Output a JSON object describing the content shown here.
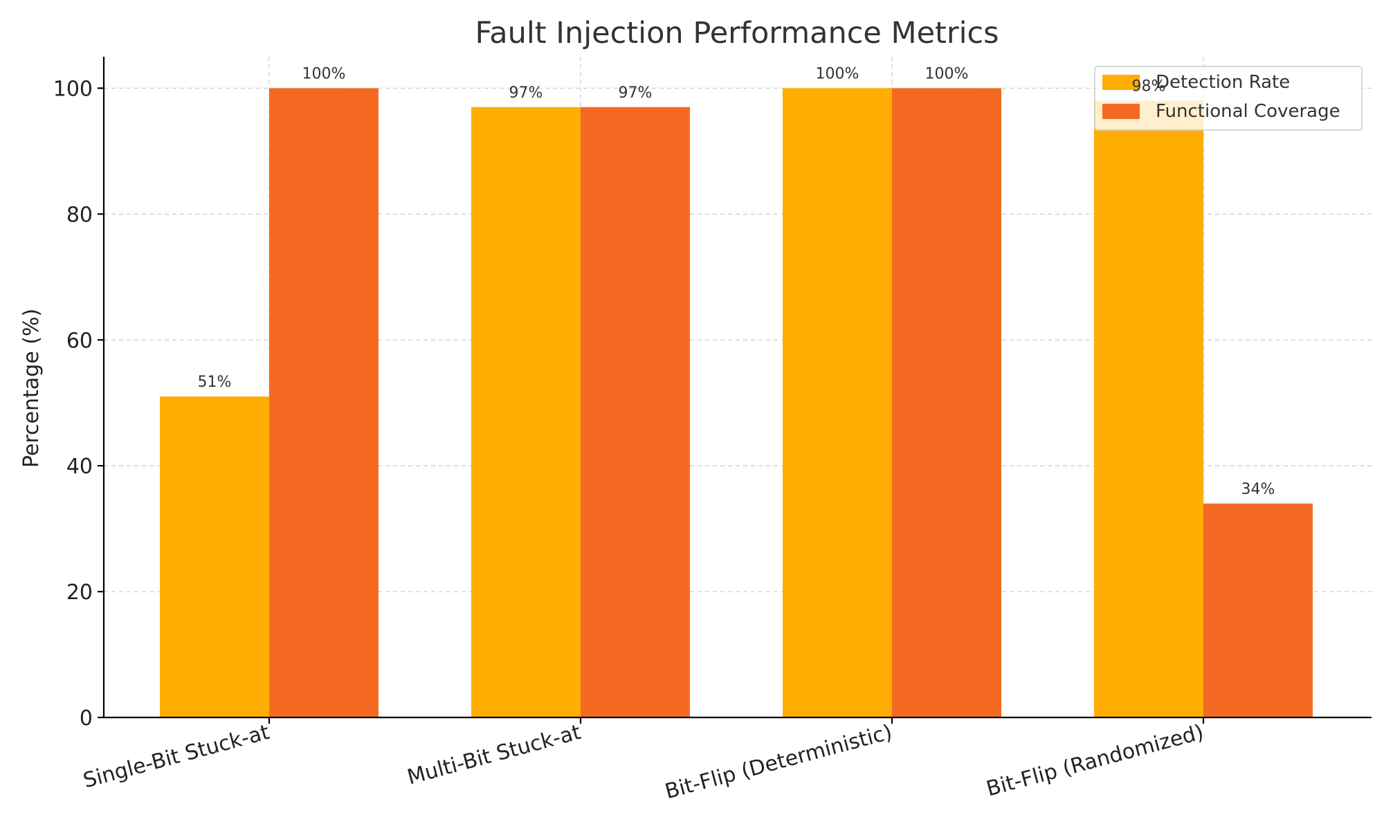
{
  "chart_data": {
    "type": "bar",
    "title": "Fault Injection Performance Metrics",
    "xlabel": "",
    "ylabel": "Percentage (%)",
    "ylim": [
      0,
      105
    ],
    "yticks": [
      0,
      20,
      40,
      60,
      80,
      100
    ],
    "grid": true,
    "legend_position": "top-right",
    "categories": [
      "Single-Bit Stuck-at",
      "Multi-Bit Stuck-at",
      "Bit-Flip (Deterministic)",
      "Bit-Flip (Randomized)"
    ],
    "series": [
      {
        "name": "Detection Rate",
        "color": "#FFAE03",
        "values": [
          51,
          97,
          100,
          98
        ],
        "labels": [
          "51%",
          "97%",
          "100%",
          "98%"
        ]
      },
      {
        "name": "Functional Coverage",
        "color": "#F46A22",
        "values": [
          100,
          97,
          100,
          34
        ],
        "labels": [
          "100%",
          "97%",
          "100%",
          "34%"
        ]
      }
    ]
  }
}
